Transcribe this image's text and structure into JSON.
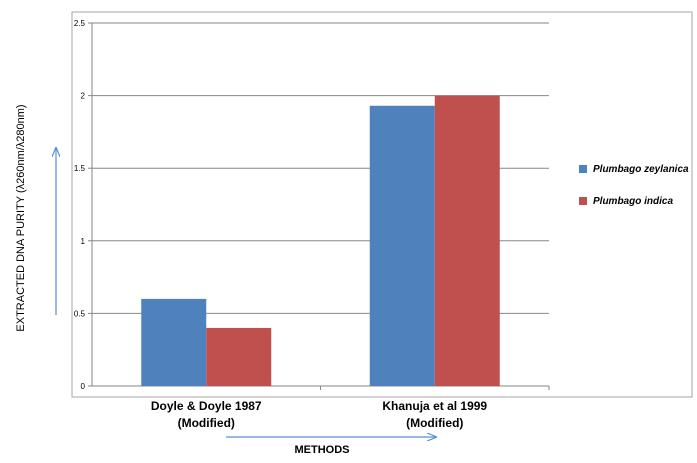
{
  "chart_data": {
    "type": "bar",
    "title": "",
    "xlabel": "METHODS",
    "ylabel": "EXTRACTED DNA PURITY (λ260nm/λ280nm)",
    "categories": [
      [
        "Doyle & Doyle 1987",
        "(Modified)"
      ],
      [
        "Khanuja et al 1999",
        "(Modified)"
      ]
    ],
    "series": [
      {
        "name": "Plumbago zeylanica",
        "values": [
          0.6,
          1.93
        ],
        "color": "#4f81bd"
      },
      {
        "name": "Plumbago indica",
        "values": [
          0.4,
          2.0
        ],
        "color": "#c0504d"
      }
    ],
    "ylim": [
      0,
      2.5
    ],
    "yticks": [
      0,
      0.5,
      1,
      1.5,
      2,
      2.5
    ],
    "ytick_labels": [
      "0",
      "0.5",
      "1",
      "1.5",
      "2",
      "2.5"
    ],
    "grid": true,
    "legend_position": "right"
  }
}
